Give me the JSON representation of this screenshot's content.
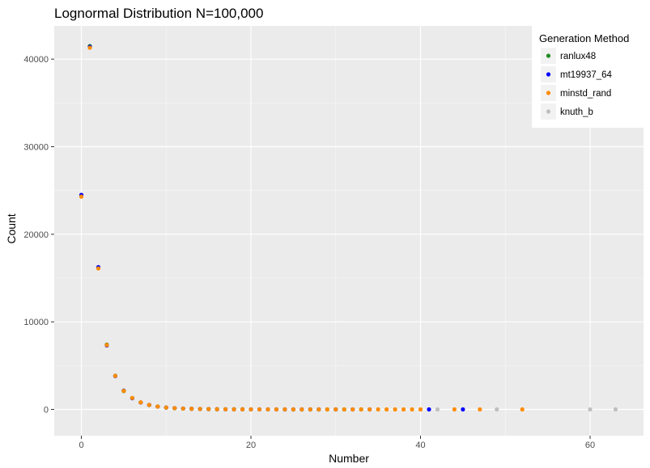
{
  "chart_data": {
    "type": "scatter",
    "title": "Lognormal Distribution N=100,000",
    "xlabel": "Number",
    "ylabel": "Count",
    "xlim": [
      -3.2,
      66.3
    ],
    "ylim": [
      -3000,
      43800
    ],
    "x_ticks": [
      0,
      20,
      40,
      60
    ],
    "y_ticks": [
      0,
      10000,
      20000,
      30000,
      40000
    ],
    "x_tick_labels": [
      "0",
      "20",
      "40",
      "60"
    ],
    "y_tick_labels": [
      "0",
      "10000",
      "20000",
      "30000",
      "40000"
    ],
    "grid": true,
    "legend": {
      "title": "Generation Method",
      "position": "top-right"
    },
    "series": [
      {
        "name": "ranlux48",
        "color": "#228B22",
        "points": [
          [
            0,
            24450
          ],
          [
            1,
            41500
          ],
          [
            2,
            16200
          ],
          [
            3,
            7400
          ],
          [
            4,
            3850
          ],
          [
            5,
            2100
          ],
          [
            6,
            1300
          ],
          [
            7,
            800
          ],
          [
            8,
            500
          ],
          [
            9,
            330
          ],
          [
            10,
            210
          ],
          [
            11,
            140
          ],
          [
            12,
            100
          ],
          [
            13,
            70
          ],
          [
            14,
            48
          ],
          [
            15,
            34
          ],
          [
            16,
            24
          ],
          [
            17,
            17
          ],
          [
            18,
            12
          ],
          [
            19,
            9
          ],
          [
            20,
            7
          ],
          [
            21,
            5
          ],
          [
            22,
            4
          ],
          [
            23,
            3
          ],
          [
            24,
            2
          ],
          [
            25,
            2
          ],
          [
            26,
            1
          ],
          [
            27,
            1
          ],
          [
            28,
            1
          ],
          [
            29,
            1
          ],
          [
            30,
            1
          ],
          [
            31,
            1
          ],
          [
            33,
            1
          ]
        ]
      },
      {
        "name": "mt19937_64",
        "color": "#0000FF",
        "points": [
          [
            0,
            24500
          ],
          [
            1,
            41400
          ],
          [
            2,
            16250
          ],
          [
            3,
            7300
          ],
          [
            4,
            3800
          ],
          [
            5,
            2150
          ],
          [
            6,
            1280
          ],
          [
            7,
            790
          ],
          [
            8,
            510
          ],
          [
            9,
            320
          ],
          [
            10,
            215
          ],
          [
            11,
            145
          ],
          [
            12,
            98
          ],
          [
            13,
            68
          ],
          [
            14,
            47
          ],
          [
            15,
            33
          ],
          [
            16,
            23
          ],
          [
            17,
            16
          ],
          [
            18,
            11
          ],
          [
            19,
            9
          ],
          [
            20,
            6
          ],
          [
            21,
            5
          ],
          [
            22,
            4
          ],
          [
            23,
            3
          ],
          [
            24,
            2
          ],
          [
            25,
            2
          ],
          [
            26,
            1
          ],
          [
            27,
            1
          ],
          [
            28,
            1
          ],
          [
            30,
            1
          ],
          [
            32,
            1
          ],
          [
            34,
            1
          ],
          [
            41,
            1
          ],
          [
            45,
            1
          ]
        ]
      },
      {
        "name": "minstd_rand",
        "color": "#FF8C00",
        "points": [
          [
            0,
            24300
          ],
          [
            1,
            41300
          ],
          [
            2,
            16100
          ],
          [
            3,
            7350
          ],
          [
            4,
            3830
          ],
          [
            5,
            2120
          ],
          [
            6,
            1310
          ],
          [
            7,
            805
          ],
          [
            8,
            505
          ],
          [
            9,
            325
          ],
          [
            10,
            212
          ],
          [
            11,
            142
          ],
          [
            12,
            99
          ],
          [
            13,
            69
          ],
          [
            14,
            48
          ],
          [
            15,
            34
          ],
          [
            16,
            24
          ],
          [
            17,
            17
          ],
          [
            18,
            12
          ],
          [
            19,
            9
          ],
          [
            20,
            7
          ],
          [
            21,
            5
          ],
          [
            22,
            4
          ],
          [
            23,
            3
          ],
          [
            24,
            3
          ],
          [
            25,
            2
          ],
          [
            26,
            2
          ],
          [
            27,
            1
          ],
          [
            28,
            1
          ],
          [
            29,
            1
          ],
          [
            30,
            1
          ],
          [
            31,
            1
          ],
          [
            32,
            1
          ],
          [
            33,
            1
          ],
          [
            34,
            1
          ],
          [
            35,
            1
          ],
          [
            36,
            1
          ],
          [
            37,
            1
          ],
          [
            38,
            1
          ],
          [
            39,
            1
          ],
          [
            40,
            1
          ],
          [
            44,
            1
          ],
          [
            47,
            1
          ],
          [
            52,
            1
          ]
        ]
      },
      {
        "name": "knuth_b",
        "color": "#BEBEBE",
        "points": [
          [
            42,
            1
          ],
          [
            49,
            1
          ],
          [
            60,
            1
          ],
          [
            63,
            1
          ]
        ]
      }
    ]
  }
}
